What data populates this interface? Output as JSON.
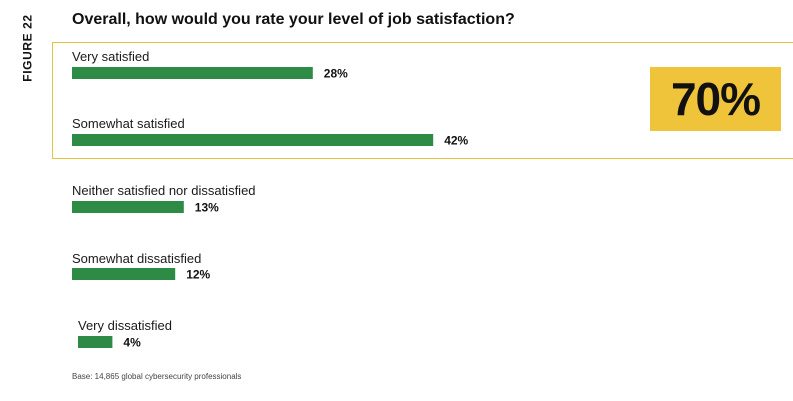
{
  "figure_label": "FIGURE 22",
  "callout": {
    "value": "70%"
  },
  "footnote": "Base: 14,865 global cybersecurity professionals",
  "colors": {
    "bar": "#2e8b45",
    "highlight": "#efc33a",
    "highlight_border": "#e3c43c"
  },
  "chart_data": {
    "type": "bar",
    "orientation": "horizontal",
    "title": "Overall, how would you rate your level of job satisfaction?",
    "categories": [
      "Very satisfied",
      "Somewhat satisfied",
      "Neither satisfied nor dissatisfied",
      "Somewhat dissatisfied",
      "Very dissatisfied"
    ],
    "values": [
      28,
      42,
      13,
      12,
      4
    ],
    "value_labels": [
      "28%",
      "42%",
      "13%",
      "12%",
      "4%"
    ],
    "unit": "%",
    "xlim": [
      0,
      100
    ],
    "grid": false,
    "legend": "none"
  }
}
